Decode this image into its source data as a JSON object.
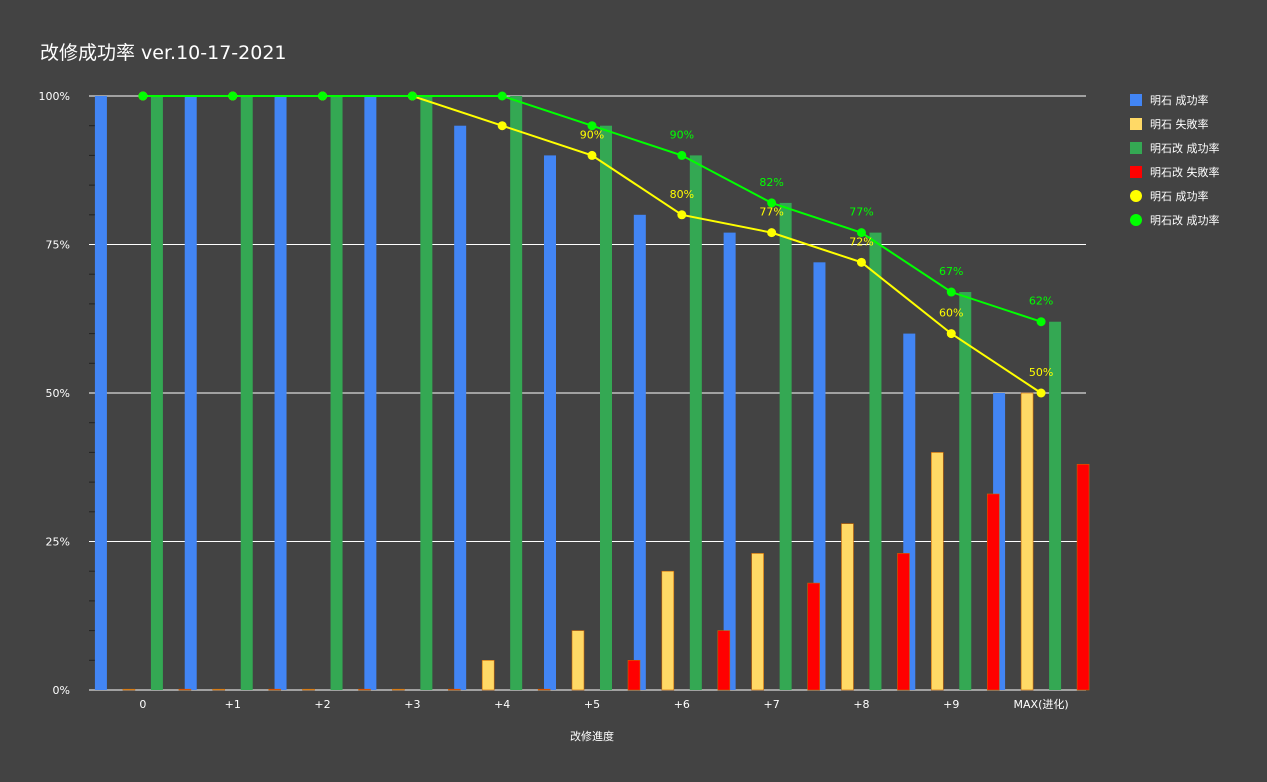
{
  "chart_data": {
    "type": "bar",
    "title": "改修成功率 ver.10-17-2021",
    "xlabel": "改修進度",
    "ylabel": "",
    "ylim": [
      0,
      100
    ],
    "y_ticks": [
      "0%",
      "25%",
      "50%",
      "75%",
      "100%"
    ],
    "grid": true,
    "legend_position": "right",
    "categories": [
      "0",
      "+1",
      "+2",
      "+3",
      "+4",
      "+5",
      "+6",
      "+7",
      "+8",
      "+9",
      "MAX(进化)"
    ],
    "series": [
      {
        "name": "明石 成功率",
        "kind": "bar",
        "color": "#4285f4",
        "values": [
          100,
          100,
          100,
          100,
          95,
          90,
          80,
          77,
          72,
          60,
          50
        ]
      },
      {
        "name": "明石 失敗率",
        "kind": "bar",
        "color": "#ffd966",
        "values": [
          0,
          0,
          0,
          0,
          5,
          10,
          20,
          23,
          28,
          40,
          50
        ]
      },
      {
        "name": "明石改 成功率",
        "kind": "bar",
        "color": "#34a853",
        "values": [
          100,
          100,
          100,
          100,
          100,
          95,
          90,
          82,
          77,
          67,
          62
        ]
      },
      {
        "name": "明石改 失敗率",
        "kind": "bar",
        "color": "#ff0000",
        "values": [
          0,
          0,
          0,
          0,
          0,
          5,
          10,
          18,
          23,
          33,
          38
        ]
      },
      {
        "name": "明石 成功率",
        "kind": "line",
        "color": "#ffff00",
        "values": [
          100,
          100,
          100,
          100,
          95,
          90,
          80,
          77,
          72,
          60,
          50
        ]
      },
      {
        "name": "明石改 成功率",
        "kind": "line",
        "color": "#00ff00",
        "values": [
          100,
          100,
          100,
          100,
          100,
          95,
          90,
          82,
          77,
          67,
          62
        ]
      }
    ],
    "data_labels": [
      {
        "series_index": 4,
        "category_index": 5,
        "text": "90%"
      },
      {
        "series_index": 4,
        "category_index": 6,
        "text": "80%"
      },
      {
        "series_index": 4,
        "category_index": 7,
        "text": "77%"
      },
      {
        "series_index": 4,
        "category_index": 8,
        "text": "72%"
      },
      {
        "series_index": 4,
        "category_index": 9,
        "text": "60%"
      },
      {
        "series_index": 4,
        "category_index": 10,
        "text": "50%"
      },
      {
        "series_index": 5,
        "category_index": 6,
        "text": "90%"
      },
      {
        "series_index": 5,
        "category_index": 7,
        "text": "82%"
      },
      {
        "series_index": 5,
        "category_index": 8,
        "text": "77%"
      },
      {
        "series_index": 5,
        "category_index": 9,
        "text": "67%"
      },
      {
        "series_index": 5,
        "category_index": 10,
        "text": "62%"
      }
    ],
    "colors": {
      "background": "#434343",
      "text": "#ffffff",
      "grid": "#ffffff"
    }
  }
}
